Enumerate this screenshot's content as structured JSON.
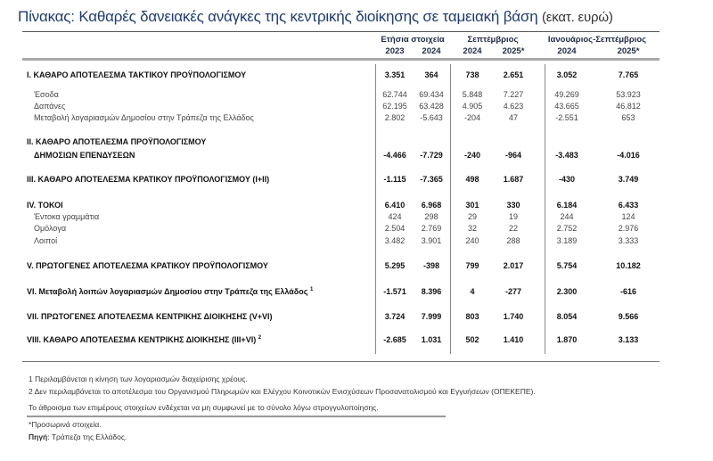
{
  "title": {
    "main": "Πίνακας: Καθαρές δανειακές ανάγκες της κεντρικής διοίκησης σε ταμειακή βάση",
    "unit": "(εκατ. ευρώ)"
  },
  "header": {
    "groups": [
      "Ετήσια στοιχεία",
      "Σεπτέμβριος",
      "Ιανουάριος-Σεπτέμβριος"
    ],
    "years": [
      "2023",
      "2024",
      "2024",
      "2025*",
      "2024",
      "2025*"
    ]
  },
  "rows": [
    {
      "label": "I. ΚΑΘΑΡΟ ΑΠΟΤΕΛΕΣΜΑ  ΤΑΚΤΙΚΟΥ ΠΡΟΫΠΟΛΟΓΙΣΜΟΥ",
      "values": [
        "3.351",
        "364",
        "738",
        "2.651",
        "3.052",
        "7.765"
      ],
      "bold": true
    },
    {
      "label": "Έσοδα",
      "values": [
        "62.744",
        "69.434",
        "5.848",
        "7.227",
        "49.269",
        "53.923"
      ],
      "bold": false
    },
    {
      "label": "Δαπάνες",
      "values": [
        "62.195",
        "63.428",
        "4.905",
        "4.623",
        "43.665",
        "46.812"
      ],
      "bold": false
    },
    {
      "label": "Μεταβολή λογαριασμών Δημοσίου στην Τράπεζα της Ελλάδος",
      "values": [
        "2.802",
        "-5.643",
        "-204",
        "47",
        "-2.551",
        "653"
      ],
      "bold": false
    },
    {
      "label": "II. ΚΑΘΑΡΟ ΑΠΟΤΕΛΕΣΜΑ ΠΡΟΫΠΟΛΟΓΙΣΜΟΥ",
      "label2": "ΔΗΜΟΣΙΩΝ ΕΠΕΝΔΥΣΕΩΝ",
      "values": [
        "-4.466",
        "-7.729",
        "-240",
        "-964",
        "-3.483",
        "-4.016"
      ],
      "bold": true
    },
    {
      "label": "III. ΚΑΘΑΡΟ ΑΠΟΤΕΛΕΣΜΑ ΚΡΑΤΙΚΟΥ ΠΡΟΫΠΟΛΟΓΙΣΜΟΥ (I+II)",
      "values": [
        "-1.115",
        "-7.365",
        "498",
        "1.687",
        "-430",
        "3.749"
      ],
      "bold": true
    },
    {
      "label": "IV. ΤΟΚΟΙ",
      "values": [
        "6.410",
        "6.968",
        "301",
        "330",
        "6.184",
        "6.433"
      ],
      "bold": true
    },
    {
      "label": "Έντοκα γραμμάτια",
      "values": [
        "424",
        "298",
        "29",
        "19",
        "244",
        "124"
      ],
      "bold": false
    },
    {
      "label": "Ομόλογα",
      "values": [
        "2.504",
        "2.769",
        "32",
        "22",
        "2.752",
        "2.976"
      ],
      "bold": false
    },
    {
      "label": "Λοιποί",
      "values": [
        "3.482",
        "3.901",
        "240",
        "288",
        "3.189",
        "3.333"
      ],
      "bold": false
    },
    {
      "label": "V. ΠΡΩΤΟΓΕΝΕΣ ΑΠΟΤΕΛΕΣΜΑ  ΚΡΑΤΙΚΟΥ ΠΡΟΫΠΟΛΟΓΙΣΜΟΥ",
      "values": [
        "5.295",
        "-398",
        "799",
        "2.017",
        "5.754",
        "10.182"
      ],
      "bold": true
    },
    {
      "label": "VI. Μεταβολή λοιπών λογαριασμών Δημοσίου στην Τράπεζα της Ελλάδος",
      "sup": "1",
      "values": [
        "-1.571",
        "8.396",
        "4",
        "-277",
        "2.300",
        "-616"
      ],
      "bold": true
    },
    {
      "label": "VII. ΠΡΩΤΟΓΕΝΕΣ ΑΠΟΤΕΛΕΣΜΑ ΚΕΝΤΡΙΚΗΣ ΔΙΟΙΚΗΣΗΣ (V+VI)",
      "values": [
        "3.724",
        "7.999",
        "803",
        "1.740",
        "8.054",
        "9.566"
      ],
      "bold": true
    },
    {
      "label": "VIII. ΚΑΘΑΡΟ ΑΠΟΤΕΛΕΣΜΑ ΚΕΝΤΡΙΚΗΣ ΔΙΟΙΚΗΣΗΣ (III+VI)",
      "sup": "2",
      "values": [
        "-2.685",
        "1.031",
        "502",
        "1.410",
        "1.870",
        "3.133"
      ],
      "bold": true
    }
  ],
  "footnotes": [
    "1 Περιλαμβάνεται η κίνηση των λογαριασμών διαχείρισης χρέους.",
    "2 Δεν περιλαμβάνεται το αποτέλεσμα του Οργανισμού Πληρωμών και Ελέγχου Κοινοτικών Ενισχύσεων Προσανατολισμού και Εγγυήσεων (ΟΠΕΚΕΠΕ).",
    "Το άθροισμα των επιμέρους στοιχείων ενδέχεται να μη συμφωνεί με το σύνολο λόγω στρογγυλοποίησης."
  ],
  "notes": {
    "provisional": "*Προσωρινά στοιχεία.",
    "source_label": "Πηγή",
    "source_text": ": Τράπεζα της Ελλάδος."
  }
}
